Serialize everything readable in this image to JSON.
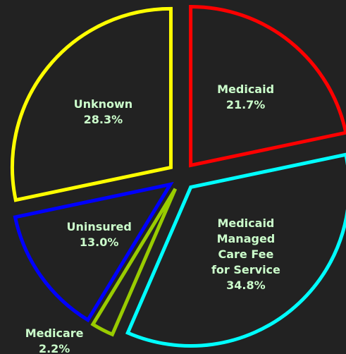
{
  "chart_data": {
    "type": "pie",
    "categories": [
      "Medicaid",
      "Medicaid Managed Care Fee for Service",
      "Medicare",
      "Uninsured",
      "Unknown"
    ],
    "values": [
      21.7,
      34.8,
      2.2,
      13.0,
      28.3
    ],
    "value_labels": [
      "21.7%",
      "34.8%",
      "2.2%",
      "13.0%",
      "28.3%"
    ],
    "colors": [
      "#ff0000",
      "#00ffff",
      "#99cc00",
      "#0000ff",
      "#ffff00"
    ]
  }
}
